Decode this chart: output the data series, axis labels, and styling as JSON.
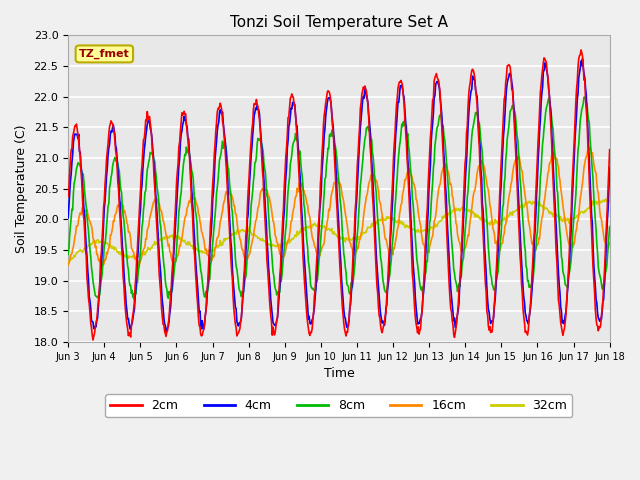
{
  "title": "Tonzi Soil Temperature Set A",
  "xlabel": "Time",
  "ylabel": "Soil Temperature (C)",
  "ylim": [
    18.0,
    23.0
  ],
  "yticks": [
    18.0,
    18.5,
    19.0,
    19.5,
    20.0,
    20.5,
    21.0,
    21.5,
    22.0,
    22.5,
    23.0
  ],
  "xtick_labels": [
    "Jun 3",
    "Jun 4",
    "Jun 5",
    "Jun 6",
    "Jun 7",
    "Jun 8",
    "Jun 9",
    "Jun 10",
    "Jun 11",
    "Jun 12",
    "Jun 13",
    "Jun 14",
    "Jun 15",
    "Jun 16",
    "Jun 17",
    "Jun 18"
  ],
  "colors": {
    "2cm": "#ff0000",
    "4cm": "#0000ff",
    "8cm": "#00bb00",
    "16cm": "#ff8800",
    "32cm": "#cccc00"
  },
  "legend_label": "TZ_fmet",
  "legend_box_facecolor": "#ffff99",
  "legend_box_edgecolor": "#bbaa00",
  "plot_bg_color": "#e8e8e8",
  "fig_bg_color": "#f0f0f0",
  "n_points": 720
}
